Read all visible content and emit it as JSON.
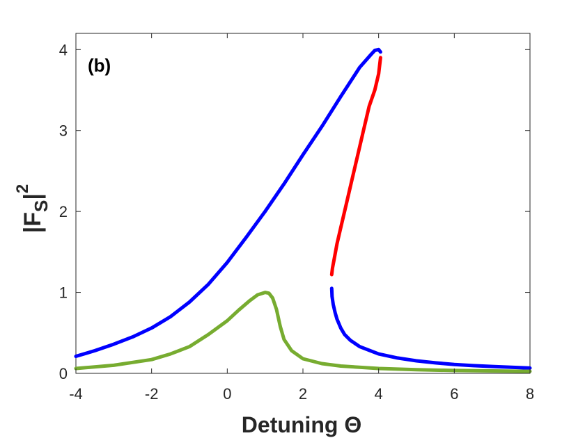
{
  "chart_data": {
    "type": "line",
    "panel_label": "(b)",
    "xlabel": "Detuning Θ",
    "ylabel": {
      "main": "|F",
      "sub": "S",
      "close": "|",
      "sup": "2"
    },
    "xlim": [
      -4,
      8
    ],
    "ylim": [
      0,
      4.2
    ],
    "xticks": [
      "-4",
      "-2",
      "0",
      "2",
      "4",
      "6",
      "8"
    ],
    "yticks": [
      "0",
      "1",
      "2",
      "3",
      "4"
    ],
    "grid": false,
    "colors": {
      "blue": "#0000ff",
      "red": "#ff0000",
      "green": "#77ac30",
      "axis": "#262626"
    },
    "series": [
      {
        "color": "#0000ff",
        "x": [
          -4,
          -3.5,
          -3,
          -2.5,
          -2,
          -1.5,
          -1,
          -0.5,
          0,
          0.5,
          1,
          1.5,
          2,
          2.5,
          3,
          3.5,
          3.8,
          3.9,
          4.0,
          4.05
        ],
        "y": [
          0.21,
          0.28,
          0.36,
          0.45,
          0.56,
          0.7,
          0.88,
          1.1,
          1.37,
          1.68,
          2.0,
          2.34,
          2.7,
          3.05,
          3.42,
          3.78,
          3.94,
          3.99,
          4.0,
          3.97
        ]
      },
      {
        "color": "#ff0000",
        "x": [
          4.05,
          4.0,
          3.9,
          3.75,
          3.6,
          3.45,
          3.3,
          3.15,
          3.0,
          2.9,
          2.82,
          2.78,
          2.76
        ],
        "y": [
          3.9,
          3.7,
          3.5,
          3.3,
          3.0,
          2.7,
          2.4,
          2.1,
          1.8,
          1.6,
          1.4,
          1.3,
          1.22
        ]
      },
      {
        "color": "#0000ff",
        "x": [
          2.76,
          2.77,
          2.8,
          2.85,
          2.9,
          3.0,
          3.1,
          3.25,
          3.5,
          4.0,
          4.5,
          5,
          5.5,
          6,
          6.5,
          7,
          7.5,
          8
        ],
        "y": [
          1.05,
          0.95,
          0.85,
          0.75,
          0.67,
          0.56,
          0.48,
          0.41,
          0.33,
          0.24,
          0.19,
          0.155,
          0.13,
          0.11,
          0.095,
          0.085,
          0.075,
          0.065
        ]
      },
      {
        "color": "#77ac30",
        "x": [
          -4,
          -3,
          -2,
          -1.5,
          -1,
          -0.5,
          0,
          0.3,
          0.6,
          0.8,
          1.0,
          1.1,
          1.2,
          1.3,
          1.4,
          1.5,
          1.7,
          2.0,
          2.5,
          3,
          4,
          5,
          6,
          7,
          8
        ],
        "y": [
          0.06,
          0.1,
          0.17,
          0.24,
          0.33,
          0.48,
          0.65,
          0.78,
          0.9,
          0.97,
          1.0,
          0.99,
          0.93,
          0.79,
          0.58,
          0.42,
          0.28,
          0.18,
          0.12,
          0.09,
          0.06,
          0.045,
          0.035,
          0.03,
          0.025
        ]
      }
    ]
  }
}
